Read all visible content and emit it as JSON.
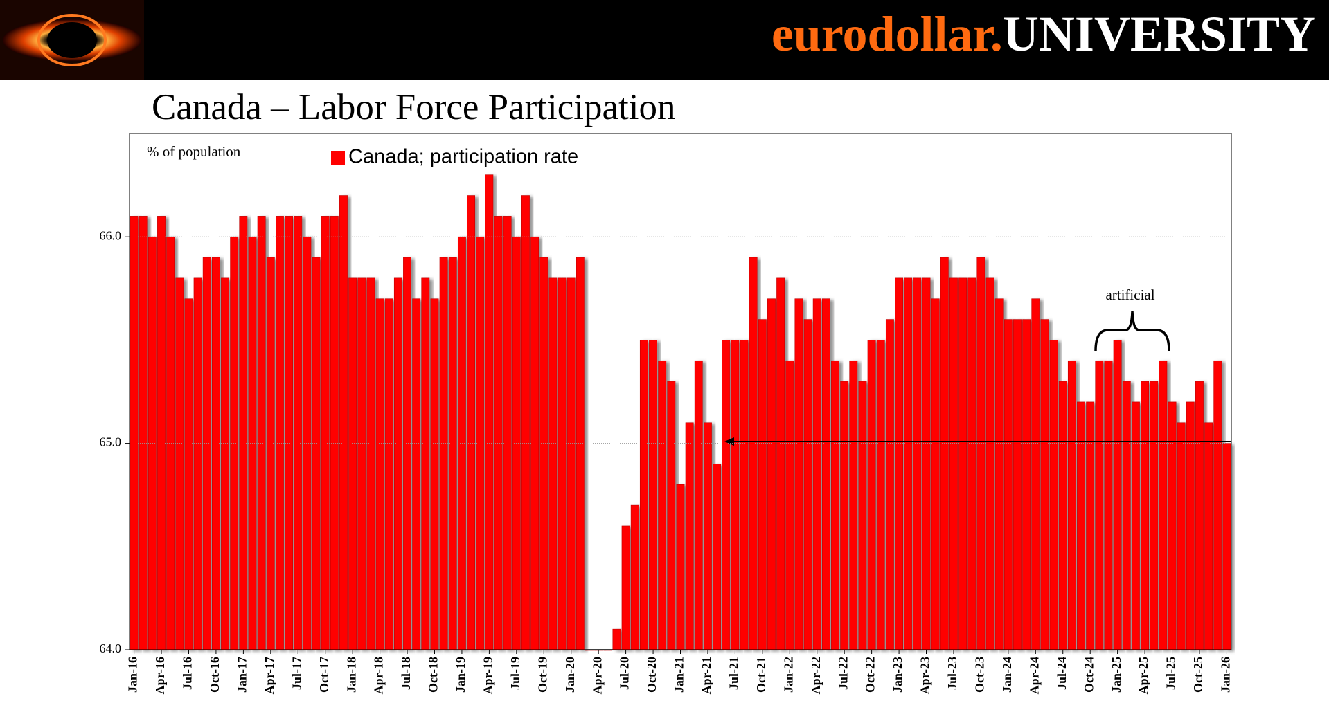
{
  "header": {
    "brand_a": "eurodollar.",
    "brand_b": "UNIVERSITY"
  },
  "chart_data": {
    "type": "bar",
    "title": "Canada – Labor Force Participation",
    "y_label": "% of population",
    "annotation": "artificial",
    "color": "#ff0000",
    "grid": true,
    "series": [
      {
        "name": "Canada; participation rate",
        "color": "#ff0000",
        "values": [
          66.1,
          66.1,
          66.0,
          66.1,
          66.0,
          65.8,
          65.7,
          65.8,
          65.9,
          65.9,
          65.8,
          66.0,
          66.1,
          66.0,
          66.1,
          65.9,
          66.1,
          66.1,
          66.1,
          66.0,
          65.9,
          66.1,
          66.1,
          66.2,
          65.8,
          65.8,
          65.8,
          65.7,
          65.7,
          65.8,
          65.9,
          65.7,
          65.8,
          65.7,
          65.9,
          65.9,
          66.0,
          66.2,
          66.0,
          66.3,
          66.1,
          66.1,
          66.0,
          66.2,
          66.0,
          65.9,
          65.8,
          65.8,
          65.8,
          65.9,
          64.0,
          64.0,
          64.0,
          64.1,
          64.6,
          64.7,
          65.5,
          65.5,
          65.4,
          65.3,
          64.8,
          65.1,
          65.4,
          65.1,
          64.9,
          65.5,
          65.5,
          65.5,
          65.9,
          65.6,
          65.7,
          65.8,
          65.4,
          65.7,
          65.6,
          65.7,
          65.7,
          65.4,
          65.3,
          65.4,
          65.3,
          65.5,
          65.5,
          65.6,
          65.8,
          65.8,
          65.8,
          65.8,
          65.7,
          65.9,
          65.8,
          65.8,
          65.8,
          65.9,
          65.8,
          65.7,
          65.6,
          65.6,
          65.6,
          65.7,
          65.6,
          65.5,
          65.3,
          65.4,
          65.2,
          65.2,
          65.4,
          65.4,
          65.5,
          65.3,
          65.2,
          65.3,
          65.3,
          65.4,
          65.2,
          65.1,
          65.2,
          65.3,
          65.1,
          65.4,
          65.0
        ]
      }
    ],
    "categories": [
      "Jan-16",
      null,
      null,
      "Apr-16",
      null,
      null,
      "Jul-16",
      null,
      null,
      "Oct-16",
      null,
      null,
      "Jan-17",
      null,
      null,
      "Apr-17",
      null,
      null,
      "Jul-17",
      null,
      null,
      "Oct-17",
      null,
      null,
      "Jan-18",
      null,
      null,
      "Apr-18",
      null,
      null,
      "Jul-18",
      null,
      null,
      "Oct-18",
      null,
      null,
      "Jan-19",
      null,
      null,
      "Apr-19",
      null,
      null,
      "Jul-19",
      null,
      null,
      "Oct-19",
      null,
      null,
      "Jan-20",
      null,
      null,
      "Apr-20",
      null,
      null,
      "Jul-20",
      null,
      null,
      "Oct-20",
      null,
      null,
      "Jan-21",
      null,
      null,
      "Apr-21",
      null,
      null,
      "Jul-21",
      null,
      null,
      "Oct-21",
      null,
      null,
      "Jan-22",
      null,
      null,
      "Apr-22",
      null,
      null,
      "Jul-22",
      null,
      null,
      "Oct-22",
      null,
      null,
      "Jan-23",
      null,
      null,
      "Apr-23",
      null,
      null,
      "Jul-23",
      null,
      null,
      "Oct-23",
      null,
      null,
      "Jan-24",
      null,
      null,
      "Apr-24",
      null,
      null,
      "Jul-24",
      null,
      null,
      "Oct-24",
      null,
      null,
      "Jan-25",
      null,
      null,
      "Apr-25",
      null,
      null,
      "Jul-25",
      null,
      null,
      "Oct-25",
      null,
      null,
      "Jan-26"
    ],
    "ylim": [
      64.0,
      66.5
    ],
    "yticks": [
      {
        "value": 64,
        "label": "64.0"
      },
      {
        "value": 65,
        "label": "65.0"
      },
      {
        "value": 66,
        "label": "66.0"
      }
    ]
  }
}
